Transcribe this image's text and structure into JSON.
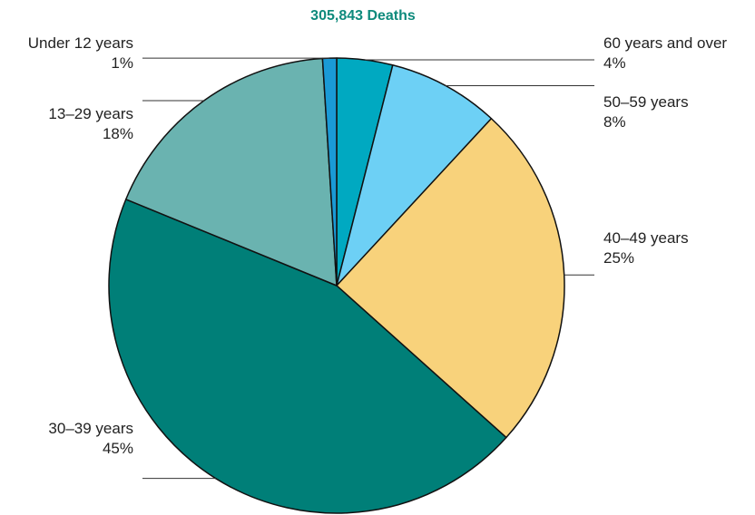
{
  "chart_data": {
    "type": "pie",
    "title": "305,843 Deaths",
    "title_color": "#0e8a7c",
    "slices": [
      {
        "label": "60 years and over",
        "pct_label": "4%",
        "value": 4,
        "color": "#00a9c1"
      },
      {
        "label": "50–59 years",
        "pct_label": "8%",
        "value": 8,
        "color": "#6dd0f5"
      },
      {
        "label": "40–49 years",
        "pct_label": "25%",
        "value": 25,
        "color": "#f8d27b"
      },
      {
        "label": "30–39 years",
        "pct_label": "45%",
        "value": 45,
        "color": "#007f78"
      },
      {
        "label": "13–29 years",
        "pct_label": "18%",
        "value": 18,
        "color": "#6ab3b0"
      },
      {
        "label": "Under 12 years",
        "pct_label": "1%",
        "value": 1,
        "color": "#1a9ad6"
      }
    ]
  }
}
